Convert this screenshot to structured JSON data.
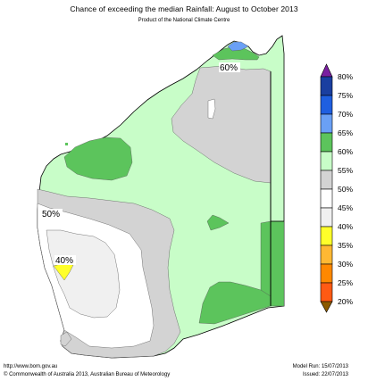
{
  "header": {
    "title": "Chance of exceeding the median Rainfall: August to October 2013",
    "subtitle": "Product of the National Climate Centre"
  },
  "map_labels": {
    "north": "60%",
    "west": "50%",
    "southwest": "40%"
  },
  "legend": {
    "items": [
      {
        "label": "80%",
        "color": "#1a3fa0"
      },
      {
        "label": "75%",
        "color": "#1f5fe0"
      },
      {
        "label": "70%",
        "color": "#6aa0f5"
      },
      {
        "label": "65%",
        "color": "#5cc45c"
      },
      {
        "label": "60%",
        "color": "#c8fdc8"
      },
      {
        "label": "55%",
        "color": "#d3d3d3"
      },
      {
        "label": "50%",
        "color": "#ffffff"
      },
      {
        "label": "45%",
        "color": "#f0f0f0"
      },
      {
        "label": "40%",
        "color": "#ffff2a"
      },
      {
        "label": "35%",
        "color": "#ffb833"
      },
      {
        "label": "30%",
        "color": "#ff8800"
      },
      {
        "label": "25%",
        "color": "#ff5a14"
      },
      {
        "label": "20%",
        "color": "#ff0000"
      }
    ],
    "top_arrow_color": "#7a1fa0",
    "bottom_arrow_color": "#8b5a00"
  },
  "footer": {
    "url": "http://www.bom.gov.au",
    "copyright": "©  Commonwealth of Australia 2013, Australian Bureau of Meteorology",
    "model_run": "Model Run: 15/07/2013",
    "issued": "Issued: 22/07/2013"
  }
}
